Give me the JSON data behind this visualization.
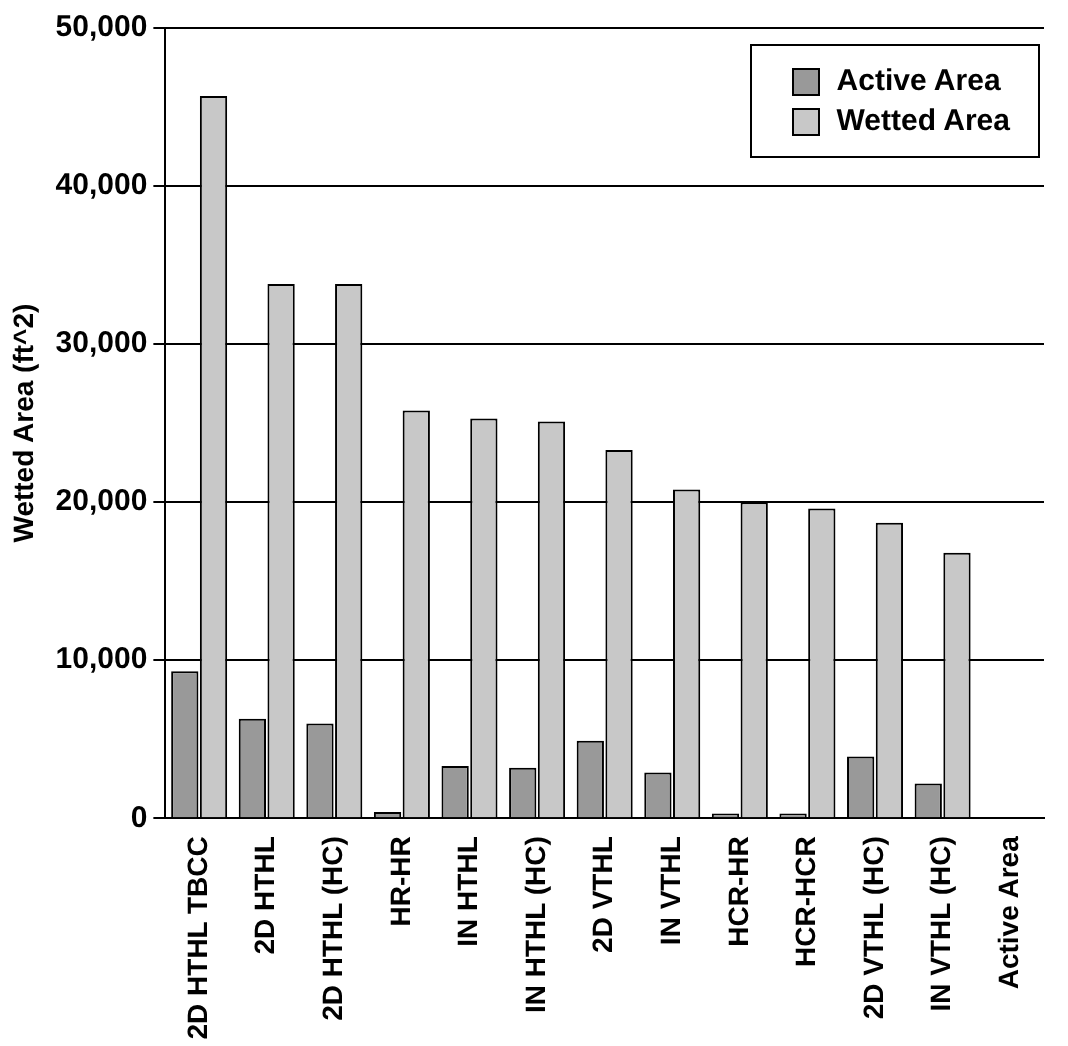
{
  "chart_data": {
    "type": "bar",
    "ylabel": "Wetted Area (ft^2)",
    "categories": [
      "2D HTHL TBCC",
      "2D HTHL",
      "2D HTHL (HC)",
      "HR-HR",
      "IN HTHL",
      "IN HTHL (HC)",
      "2D VTHL",
      "IN VTHL",
      "HCR-HR",
      "HCR-HCR",
      "2D VTHL (HC)",
      "IN VTHL (HC)",
      "Active Area"
    ],
    "series": [
      {
        "name": "Active Area",
        "color": "#999999",
        "values": [
          9300,
          6300,
          6000,
          400,
          3300,
          3200,
          4900,
          2900,
          300,
          300,
          3900,
          2200,
          null
        ]
      },
      {
        "name": "Wetted Area",
        "color": "#c8c8c8",
        "values": [
          45700,
          33800,
          33800,
          25800,
          25300,
          25100,
          23300,
          20800,
          20000,
          19600,
          18700,
          16800,
          null
        ]
      }
    ],
    "ylim": [
      0,
      50000
    ],
    "yticks": [
      {
        "value": 0,
        "label": "0"
      },
      {
        "value": 10000,
        "label": "10,000"
      },
      {
        "value": 20000,
        "label": "20,000"
      },
      {
        "value": 30000,
        "label": "30,000"
      },
      {
        "value": 40000,
        "label": "40,000"
      },
      {
        "value": 50000,
        "label": "50,000"
      }
    ],
    "grid": "y",
    "legend": "top right"
  }
}
